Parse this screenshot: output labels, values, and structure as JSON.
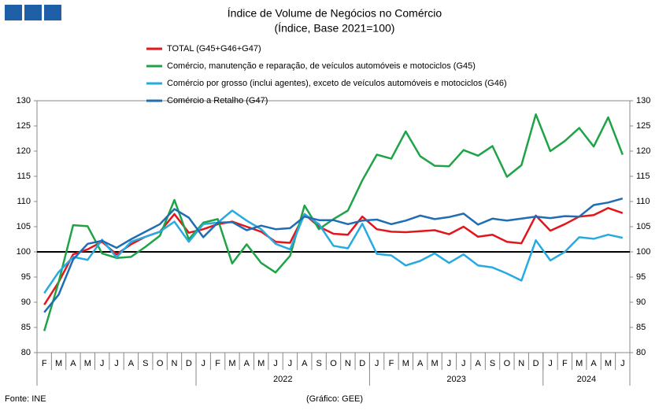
{
  "chart_data": {
    "type": "line",
    "title": "Índice de Volume de Negócios no Comércio",
    "subtitle": "(Índice, Base 2021=100)",
    "categories": [
      "F",
      "M",
      "A",
      "M",
      "J",
      "J",
      "A",
      "S",
      "O",
      "N",
      "D",
      "J",
      "F",
      "M",
      "A",
      "M",
      "J",
      "J",
      "A",
      "S",
      "O",
      "N",
      "D",
      "J",
      "F",
      "M",
      "A",
      "M",
      "J",
      "J",
      "A",
      "S",
      "O",
      "N",
      "D",
      "J",
      "F",
      "M",
      "A",
      "M",
      "J"
    ],
    "year_labels": [
      null,
      "2022",
      "2023",
      "2024"
    ],
    "series": [
      {
        "name": "TOTAL (G45+G46+G47)",
        "color": "#e3151b",
        "values": [
          89.5,
          94,
          99.5,
          100.5,
          102,
          99.5,
          101.5,
          103,
          104,
          107.5,
          103.8,
          104.5,
          105.5,
          106,
          105,
          104,
          102,
          101.8,
          107.5,
          105,
          103.6,
          103.4,
          107,
          104.5,
          104,
          103.9,
          104.1,
          104.3,
          103.5,
          105,
          103,
          103.4,
          102,
          101.7,
          107.2,
          104.2,
          105.5,
          107,
          107.3,
          108.7,
          107.7
        ]
      },
      {
        "name": "Comércio, manutenção e reparação, de veículos automóveis e motociclos (G45)",
        "color": "#1ea447",
        "values": [
          84.3,
          94,
          105.3,
          105.1,
          99.7,
          98.8,
          99,
          101,
          103.2,
          110.3,
          102.5,
          105.8,
          106.5,
          97.7,
          101.5,
          97.8,
          95.9,
          99.2,
          109.2,
          104.5,
          106.5,
          108.2,
          114.2,
          119.3,
          118.5,
          123.9,
          119,
          117.1,
          117,
          120.2,
          119.1,
          121,
          114.9,
          117.2,
          127.3,
          120,
          122,
          124.6,
          120.9,
          126.7,
          119.3
        ]
      },
      {
        "name": "Comércio por grosso (inclui agentes), exceto de veículos automóveis e motociclos (G46)",
        "color": "#27aae1",
        "values": [
          91.8,
          96,
          99,
          98.4,
          102.4,
          98.9,
          102,
          103,
          104,
          106,
          102,
          105.5,
          105.8,
          108.2,
          106.2,
          104.5,
          101.6,
          100.5,
          107.5,
          105.5,
          101.2,
          100.7,
          105.6,
          99.6,
          99.3,
          97.3,
          98.2,
          99.7,
          97.8,
          99.5,
          97.3,
          96.9,
          95.7,
          94.3,
          102.3,
          98.3,
          100,
          102.9,
          102.6,
          103.4,
          102.8
        ]
      },
      {
        "name": "Comércio a Retalho (G47)",
        "color": "#1f6db3",
        "values": [
          88,
          91.5,
          98.5,
          101.6,
          102.2,
          100.8,
          102.5,
          104,
          105.5,
          108.5,
          106.8,
          102.9,
          105.8,
          105.9,
          104.3,
          105.2,
          104.5,
          104.7,
          107,
          106.3,
          106.3,
          105.5,
          106.2,
          106.4,
          105.5,
          106.2,
          107.2,
          106.5,
          106.9,
          107.6,
          105.4,
          106.6,
          106.2,
          106.6,
          107,
          106.7,
          107.1,
          107,
          109.3,
          109.8,
          110.6
        ]
      }
    ],
    "reference_line": 100,
    "ylim": [
      80,
      130
    ],
    "yticks": [
      80,
      85,
      90,
      95,
      100,
      105,
      110,
      115,
      120,
      125,
      130
    ],
    "y2lim": [
      80,
      130
    ],
    "y2ticks": [
      80,
      85,
      90,
      95,
      100,
      105,
      110,
      115,
      120,
      125,
      130
    ],
    "source": "Fonte: INE",
    "credit": "(Gráfico: GEE)"
  }
}
